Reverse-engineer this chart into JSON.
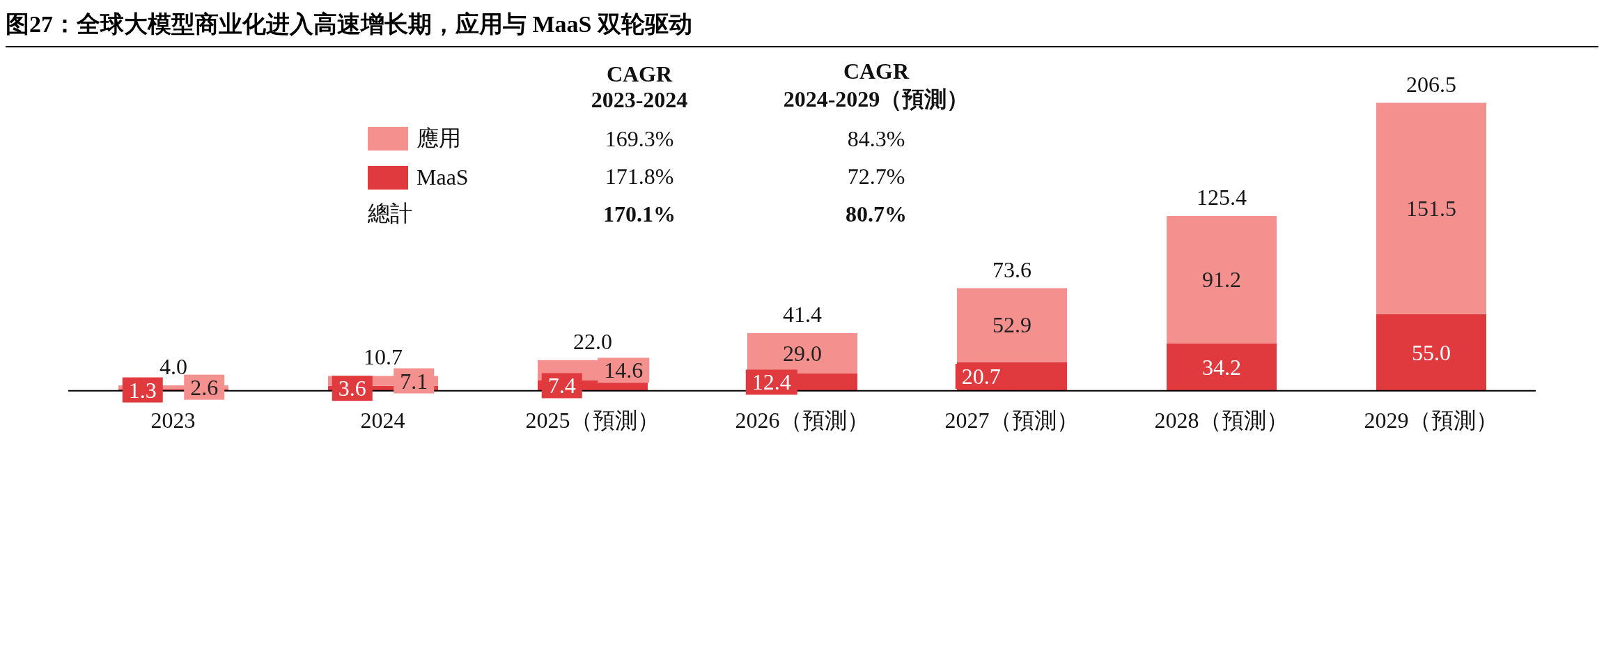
{
  "chart_data": {
    "type": "bar",
    "title": "图27：全球大模型商业化进入高速增长期，应用与 MaaS 双轮驱动",
    "categories": [
      "2023",
      "2024",
      "2025（預測）",
      "2026（預測）",
      "2027（預測）",
      "2028（預測）",
      "2029（預測）"
    ],
    "stacked": true,
    "series": [
      {
        "name": "MaaS",
        "color": "#e0393e",
        "values": [
          1.3,
          3.6,
          7.4,
          12.4,
          20.7,
          34.2,
          55.0
        ],
        "value_labels": [
          "1.3",
          "3.6",
          "7.4",
          "12.4",
          "20.7",
          "34.2",
          "55.0"
        ]
      },
      {
        "name": "應用",
        "color": "#f4908e",
        "values": [
          2.6,
          7.1,
          14.6,
          29.0,
          52.9,
          91.2,
          151.5
        ],
        "value_labels": [
          "2.6",
          "7.1",
          "14.6",
          "29.0",
          "52.9",
          "91.2",
          "151.5"
        ]
      }
    ],
    "totals": [
      "4.0",
      "10.7",
      "22.0",
      "41.4",
      "73.6",
      "125.4",
      "206.5"
    ],
    "legend": "top left",
    "annotations": [
      "CAGR",
      "2023-2024",
      "CAGR",
      "2024-2029（預測）",
      "169.3%",
      "84.3%",
      "171.8%",
      "72.7%",
      "總計",
      "170.1%",
      "80.7%"
    ]
  }
}
